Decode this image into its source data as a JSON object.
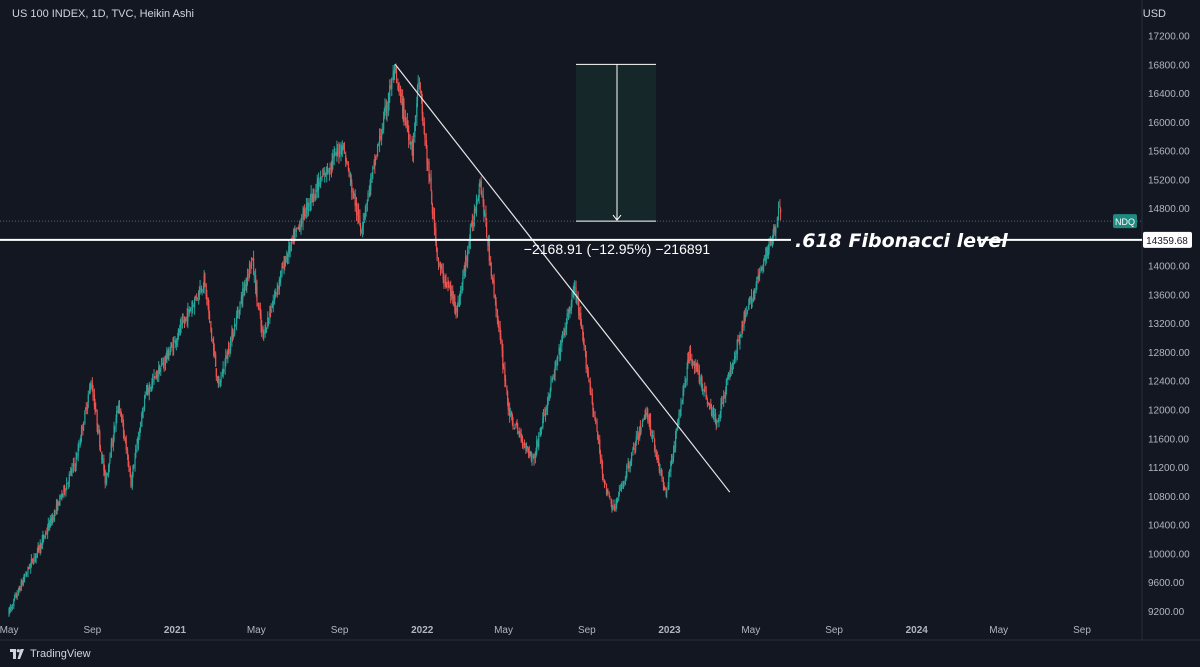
{
  "header": {
    "symbol_line": "US 100 INDEX, 1D, TVC, Heikin Ashi",
    "currency": "USD"
  },
  "branding": {
    "logo_icon": "tradingview-logo-icon",
    "name": "TradingView"
  },
  "colors": {
    "background": "#131722",
    "up_candle": "#26a69a",
    "down_candle": "#ef5350",
    "price_line": "#ffffff",
    "axis_text": "#b2b5be",
    "measure_box": "#16272a",
    "symbol_tag": "#1f8a80"
  },
  "annotations": {
    "measure_text": "−2168.91 (−12.95%) −216891",
    "fib_label": ".618 Fibonacci level",
    "symbol_tag": "NDQ",
    "price_tag": "14359.68"
  },
  "chart_data": {
    "type": "candlestick",
    "title": "US 100 INDEX, 1D, TVC, Heikin Ashi",
    "ylabel": "USD",
    "ylim": [
      9000,
      17400
    ],
    "y_ticks": [
      9200,
      9600,
      10000,
      10400,
      10800,
      11200,
      11600,
      12000,
      12400,
      12800,
      13200,
      13600,
      14000,
      14400,
      14800,
      15200,
      15600,
      16000,
      16400,
      16800,
      17200
    ],
    "y_tick_labels": [
      "9200.00",
      "9600.00",
      "10000.00",
      "10400.00",
      "10800.00",
      "11200.00",
      "11600.00",
      "12000.00",
      "12400.00",
      "12800.00",
      "13200.00",
      "13600.00",
      "14000.00",
      "14400.00",
      "14800.00",
      "15200.00",
      "15600.00",
      "16000.00",
      "16400.00",
      "16800.00",
      "17200.00"
    ],
    "x_labels": [
      "May",
      "Sep",
      "2021",
      "May",
      "Sep",
      "2022",
      "May",
      "Sep",
      "2023",
      "May",
      "Sep",
      "2024",
      "May",
      "Sep"
    ],
    "x_label_dates": [
      "2020-05-01",
      "2020-09-01",
      "2021-01-01",
      "2021-05-01",
      "2021-09-01",
      "2022-01-01",
      "2022-05-01",
      "2022-09-01",
      "2023-01-01",
      "2023-05-01",
      "2023-09-01",
      "2024-01-01",
      "2024-05-01",
      "2024-09-01"
    ],
    "series": [
      {
        "name": "US 100 INDEX",
        "points": [
          {
            "date": "2020-05-01",
            "value": 9150
          },
          {
            "date": "2020-06-01",
            "value": 9800
          },
          {
            "date": "2020-06-20",
            "value": 10150
          },
          {
            "date": "2020-07-15",
            "value": 10700
          },
          {
            "date": "2020-08-10",
            "value": 11300
          },
          {
            "date": "2020-09-01",
            "value": 12400
          },
          {
            "date": "2020-09-22",
            "value": 11000
          },
          {
            "date": "2020-10-12",
            "value": 12100
          },
          {
            "date": "2020-10-30",
            "value": 11000
          },
          {
            "date": "2020-11-20",
            "value": 12200
          },
          {
            "date": "2020-12-31",
            "value": 12900
          },
          {
            "date": "2021-02-15",
            "value": 13800
          },
          {
            "date": "2021-03-08",
            "value": 12300
          },
          {
            "date": "2021-04-26",
            "value": 14100
          },
          {
            "date": "2021-05-12",
            "value": 13000
          },
          {
            "date": "2021-06-15",
            "value": 14100
          },
          {
            "date": "2021-07-20",
            "value": 14900
          },
          {
            "date": "2021-09-07",
            "value": 15700
          },
          {
            "date": "2021-10-04",
            "value": 14500
          },
          {
            "date": "2021-11-22",
            "value": 16700
          },
          {
            "date": "2021-12-20",
            "value": 15600
          },
          {
            "date": "2021-12-28",
            "value": 16600
          },
          {
            "date": "2022-01-27",
            "value": 14000
          },
          {
            "date": "2022-02-24",
            "value": 13400
          },
          {
            "date": "2022-03-29",
            "value": 15200
          },
          {
            "date": "2022-05-12",
            "value": 11900
          },
          {
            "date": "2022-06-16",
            "value": 11300
          },
          {
            "date": "2022-08-16",
            "value": 13700
          },
          {
            "date": "2022-09-30",
            "value": 10900
          },
          {
            "date": "2022-10-13",
            "value": 10600
          },
          {
            "date": "2022-11-30",
            "value": 12000
          },
          {
            "date": "2022-12-28",
            "value": 10800
          },
          {
            "date": "2023-02-02",
            "value": 12800
          },
          {
            "date": "2023-03-13",
            "value": 11800
          },
          {
            "date": "2023-04-18",
            "value": 13100
          },
          {
            "date": "2023-05-31",
            "value": 14300
          },
          {
            "date": "2023-06-15",
            "value": 14800
          }
        ]
      }
    ],
    "trendline": {
      "start": {
        "date": "2021-11-22",
        "value": 16800
      },
      "end": {
        "date": "2023-03-31",
        "value": 10850
      }
    },
    "horizontal_level": {
      "value": 14359.68,
      "label": ".618 Fibonacci level"
    },
    "measurement": {
      "from": 16800,
      "to": 14620,
      "text": "−2168.91 (−12.95%) −216891"
    },
    "last_price": 14359.68,
    "grid": false,
    "legend": "none"
  }
}
